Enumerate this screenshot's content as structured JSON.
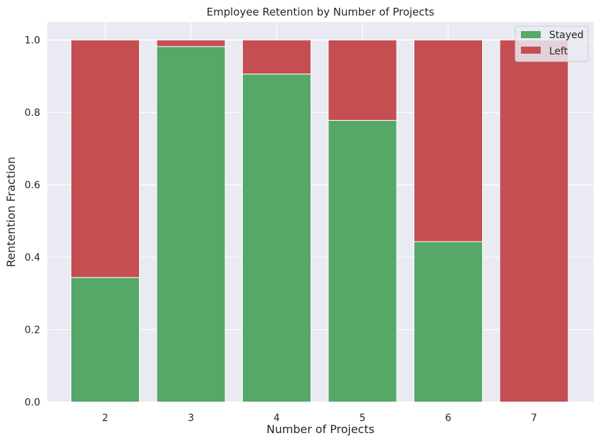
{
  "chart_data": {
    "type": "bar",
    "stacked": true,
    "title": "Employee Retention by Number of Projects",
    "xlabel": "Number of Projects",
    "ylabel": "Rentention Fraction",
    "categories": [
      "2",
      "3",
      "4",
      "5",
      "6",
      "7"
    ],
    "series": [
      {
        "name": "Stayed",
        "color": "#55a868",
        "values": [
          0.344,
          0.982,
          0.906,
          0.778,
          0.443,
          0.0
        ]
      },
      {
        "name": "Left",
        "color": "#c44e52",
        "values": [
          0.656,
          0.018,
          0.094,
          0.222,
          0.557,
          1.0
        ]
      }
    ],
    "ylim": [
      0,
      1.05
    ],
    "yticks": [
      "0.0",
      "0.2",
      "0.4",
      "0.6",
      "0.8",
      "1.0"
    ],
    "grid": true,
    "legend_position": "top-right",
    "background": "#eaeaf2"
  }
}
